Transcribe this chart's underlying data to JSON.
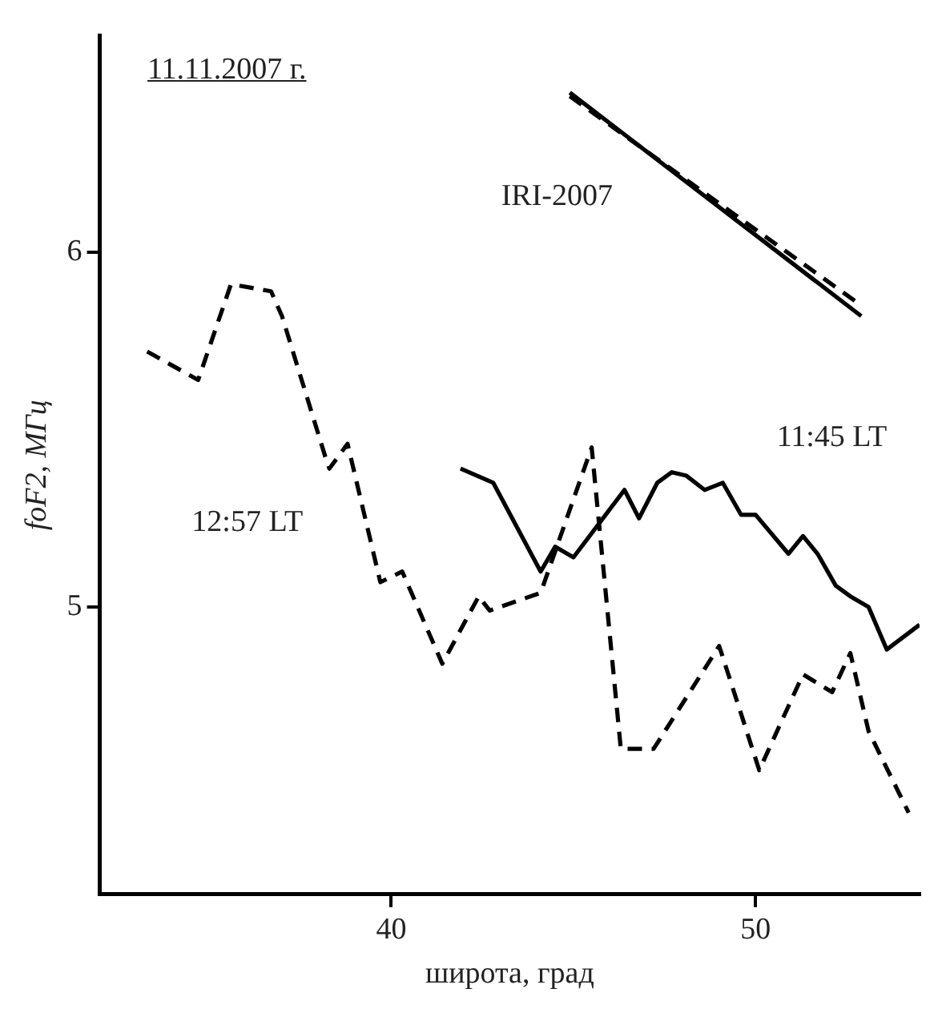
{
  "chart_data": {
    "type": "line",
    "title": "11.11.2007 г.",
    "xlabel": "широта, град",
    "ylabel": "foF2, МГц",
    "xlim": [
      32,
      54.5
    ],
    "xticks": [
      40,
      50
    ],
    "ylim": [
      4.19,
      6.61
    ],
    "yticks": [
      5,
      6
    ],
    "grid": false,
    "legend": false,
    "marker": "none",
    "series": [
      {
        "name": "12:57 LT",
        "color": "#000000",
        "line_style": "dashed",
        "x": [
          33.3,
          34.7,
          35.6,
          36.7,
          37.0,
          38.2,
          38.3,
          38.8,
          39.7,
          40.3,
          41.4,
          42.4,
          42.7,
          44.1,
          45.5,
          46.3,
          47.2,
          49.0,
          50.1,
          51.3,
          52.1,
          52.6,
          53.1,
          54.2
        ],
        "values": [
          5.72,
          5.64,
          5.91,
          5.89,
          5.82,
          5.42,
          5.39,
          5.46,
          5.07,
          5.1,
          4.84,
          5.03,
          4.99,
          5.04,
          5.45,
          4.6,
          4.6,
          4.89,
          4.54,
          4.81,
          4.76,
          4.87,
          4.65,
          4.42
        ]
      },
      {
        "name": "11:45 LT",
        "color": "#000000",
        "line_style": "solid",
        "x": [
          41.9,
          42.8,
          44.1,
          44.5,
          45.0,
          46.4,
          46.8,
          47.3,
          47.7,
          48.1,
          48.6,
          49.1,
          49.6,
          50.0,
          50.9,
          51.3,
          51.7,
          52.2,
          52.6,
          53.1,
          53.6,
          54.5
        ],
        "values": [
          5.39,
          5.35,
          5.1,
          5.17,
          5.14,
          5.33,
          5.25,
          5.35,
          5.38,
          5.37,
          5.33,
          5.35,
          5.26,
          5.26,
          5.15,
          5.2,
          5.15,
          5.06,
          5.03,
          5.0,
          4.88,
          4.95
        ]
      },
      {
        "name": "IRI-2007",
        "color": "#000000",
        "line_style": "solid",
        "x": [
          44.9,
          52.9
        ],
        "values": [
          6.45,
          5.82
        ]
      },
      {
        "color": "#000000",
        "line_style": "dashed",
        "x": [
          44.9,
          52.9
        ],
        "values": [
          6.44,
          5.85
        ]
      }
    ]
  }
}
